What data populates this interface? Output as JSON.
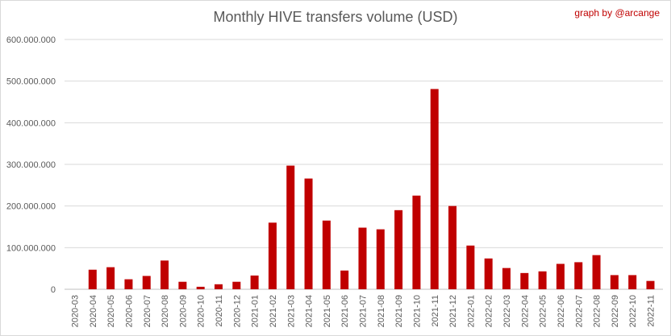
{
  "chart_data": {
    "type": "bar",
    "title": "Monthly HIVE transfers volume (USD)",
    "credit": "graph by @arcange",
    "xlabel": "",
    "ylabel": "",
    "ylim": [
      0,
      600000000
    ],
    "yticks": [
      0,
      100000000,
      200000000,
      300000000,
      400000000,
      500000000,
      600000000
    ],
    "ytick_labels": [
      "0",
      "100.000.000",
      "200.000.000",
      "300.000.000",
      "400.000.000",
      "500.000.000",
      "600.000.000"
    ],
    "grid": true,
    "bar_color": "#c00000",
    "categories": [
      "2020-03",
      "2020-04",
      "2020-05",
      "2020-06",
      "2020-07",
      "2020-08",
      "2020-09",
      "2020-10",
      "2020-11",
      "2020-12",
      "2021-01",
      "2021-02",
      "2021-03",
      "2021-04",
      "2021-05",
      "2021-06",
      "2021-07",
      "2021-08",
      "2021-09",
      "2021-10",
      "2021-11",
      "2021-12",
      "2022-01",
      "2022-02",
      "2022-03",
      "2022-04",
      "2022-05",
      "2022-06",
      "2022-07",
      "2022-08",
      "2022-09",
      "2022-10",
      "2022-11"
    ],
    "values": [
      0,
      47000000,
      53000000,
      24000000,
      32000000,
      69000000,
      18000000,
      6000000,
      12000000,
      18000000,
      33000000,
      160000000,
      297000000,
      266000000,
      165000000,
      45000000,
      148000000,
      144000000,
      190000000,
      225000000,
      481000000,
      200000000,
      105000000,
      74000000,
      51000000,
      39000000,
      43000000,
      61000000,
      65000000,
      82000000,
      34000000,
      34000000,
      20000000
    ]
  }
}
